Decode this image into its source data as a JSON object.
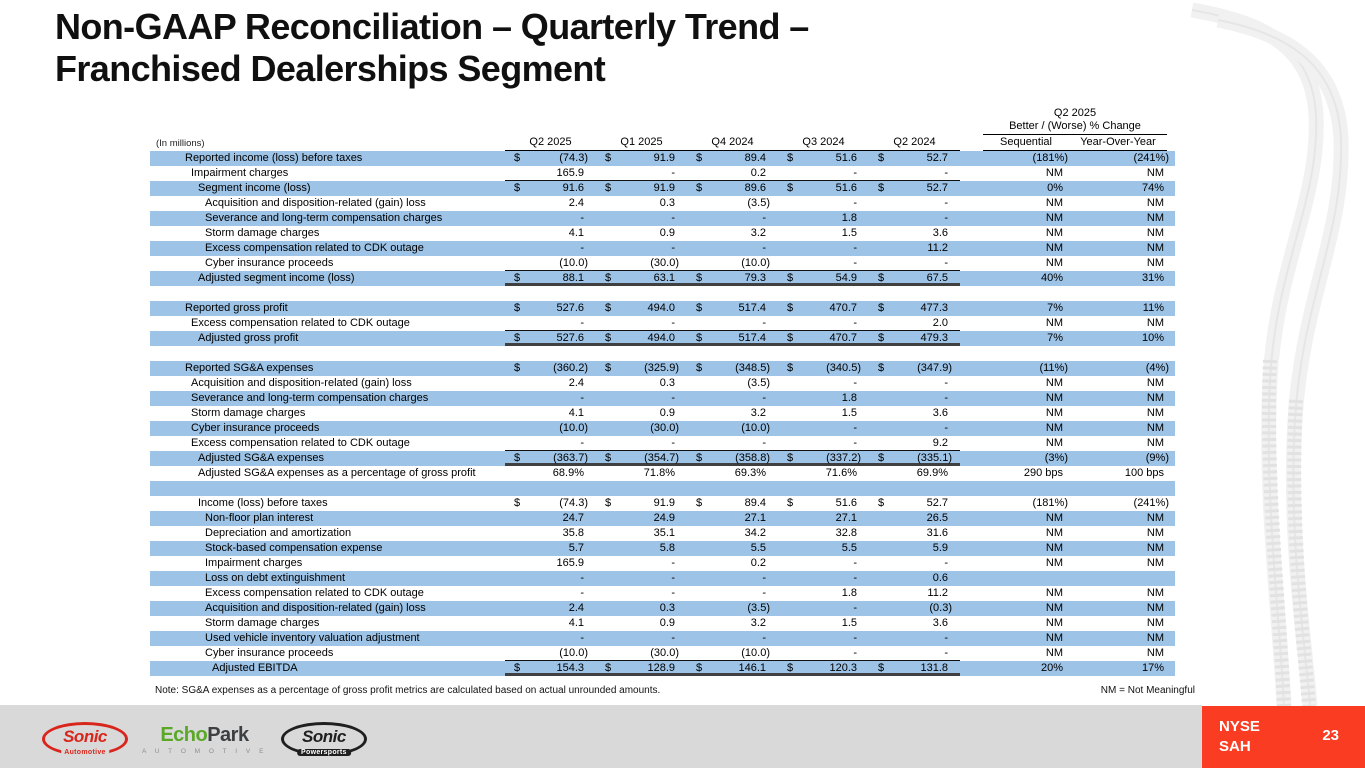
{
  "slide": {
    "title_line1": "Non-GAAP Reconciliation – Quarterly Trend –",
    "title_line2": "Franchised Dealerships Segment",
    "note": "Note: SG&A expenses as a percentage of gross profit metrics are calculated based on actual unrounded amounts.",
    "nm_legend": "NM = Not Meaningful",
    "ticker_line1": "NYSE",
    "ticker_line2": "SAH",
    "page_number": "23"
  },
  "colors": {
    "row_blue": "#9DC3E6",
    "accent_red": "#FA3C23",
    "footer_gray": "#D9D9D9",
    "logo_red": "#D9261C",
    "logo_green": "#5BA829",
    "logo_dark": "#1F1F1F",
    "rule_dark": "#404040"
  },
  "logos": {
    "sonic_automotive": {
      "word": "Sonic",
      "sub": "Automotive"
    },
    "echopark": {
      "word_green": "Echo",
      "word_dark": "Park",
      "sub": "A U T O M O T I V E"
    },
    "sonic_powersports": {
      "word": "Sonic",
      "sub": "Powersports"
    }
  },
  "table": {
    "units_label": "(In millions)",
    "dollar_sign": "$",
    "col_headers": [
      "Q2 2025",
      "Q1 2025",
      "Q4 2024",
      "Q3 2024",
      "Q2 2024"
    ],
    "change_header_line1": "Q2 2025",
    "change_header_line2": "Better / (Worse) % Change",
    "change_col_seq": "Sequential",
    "change_col_yoy": "Year-Over-Year",
    "rows": [
      {
        "label": "Reported income (loss) before taxes",
        "indent": 1,
        "dollar": true,
        "values": [
          "(74.3)",
          "91.9",
          "89.4",
          "51.6",
          "52.7"
        ],
        "seq": "(181%)",
        "yoy": "(241%)",
        "shade": "blue"
      },
      {
        "label": "Impairment charges",
        "indent": 2,
        "values": [
          "165.9",
          "-",
          "0.2",
          "-",
          "-"
        ],
        "seq": "NM",
        "yoy": "NM",
        "shade": "white",
        "rule": "thin"
      },
      {
        "label": "Segment income (loss)",
        "indent": 3,
        "dollar": true,
        "values": [
          "91.6",
          "91.9",
          "89.6",
          "51.6",
          "52.7"
        ],
        "seq": "0%",
        "yoy": "74%",
        "shade": "blue"
      },
      {
        "label": "Acquisition and disposition-related (gain) loss",
        "indent": 4,
        "values": [
          "2.4",
          "0.3",
          "(3.5)",
          "-",
          "-"
        ],
        "seq": "NM",
        "yoy": "NM",
        "shade": "white"
      },
      {
        "label": "Severance and long-term compensation charges",
        "indent": 4,
        "values": [
          "-",
          "-",
          "-",
          "1.8",
          "-"
        ],
        "seq": "NM",
        "yoy": "NM",
        "shade": "blue"
      },
      {
        "label": "Storm damage charges",
        "indent": 4,
        "values": [
          "4.1",
          "0.9",
          "3.2",
          "1.5",
          "3.6"
        ],
        "seq": "NM",
        "yoy": "NM",
        "shade": "white"
      },
      {
        "label": "Excess compensation related to CDK outage",
        "indent": 4,
        "values": [
          "-",
          "-",
          "-",
          "-",
          "11.2"
        ],
        "seq": "NM",
        "yoy": "NM",
        "shade": "blue"
      },
      {
        "label": "Cyber insurance proceeds",
        "indent": 4,
        "values": [
          "(10.0)",
          "(30.0)",
          "(10.0)",
          "-",
          "-"
        ],
        "seq": "NM",
        "yoy": "NM",
        "shade": "white",
        "rule": "thin"
      },
      {
        "label": "Adjusted segment income (loss)",
        "indent": 3,
        "dollar": true,
        "values": [
          "88.1",
          "63.1",
          "79.3",
          "54.9",
          "67.5"
        ],
        "seq": "40%",
        "yoy": "31%",
        "shade": "blue",
        "rule": "thick"
      },
      {
        "blank": true,
        "shade": "white",
        "values": []
      },
      {
        "label": "Reported gross profit",
        "indent": 1,
        "dollar": true,
        "values": [
          "527.6",
          "494.0",
          "517.4",
          "470.7",
          "477.3"
        ],
        "seq": "7%",
        "yoy": "11%",
        "shade": "blue"
      },
      {
        "label": "Excess compensation related to CDK outage",
        "indent": 2,
        "values": [
          "-",
          "-",
          "-",
          "-",
          "2.0"
        ],
        "seq": "NM",
        "yoy": "NM",
        "shade": "white",
        "rule": "thin"
      },
      {
        "label": "Adjusted gross profit",
        "indent": 3,
        "dollar": true,
        "values": [
          "527.6",
          "494.0",
          "517.4",
          "470.7",
          "479.3"
        ],
        "seq": "7%",
        "yoy": "10%",
        "shade": "blue",
        "rule": "thick"
      },
      {
        "blank": true,
        "shade": "white",
        "values": []
      },
      {
        "label": "Reported SG&A expenses",
        "indent": 1,
        "dollar": true,
        "values": [
          "(360.2)",
          "(325.9)",
          "(348.5)",
          "(340.5)",
          "(347.9)"
        ],
        "seq": "(11%)",
        "yoy": "(4%)",
        "shade": "blue"
      },
      {
        "label": "Acquisition and disposition-related (gain) loss",
        "indent": 2,
        "values": [
          "2.4",
          "0.3",
          "(3.5)",
          "-",
          "-"
        ],
        "seq": "NM",
        "yoy": "NM",
        "shade": "white"
      },
      {
        "label": "Severance and long-term compensation charges",
        "indent": 2,
        "values": [
          "-",
          "-",
          "-",
          "1.8",
          "-"
        ],
        "seq": "NM",
        "yoy": "NM",
        "shade": "blue"
      },
      {
        "label": "Storm damage charges",
        "indent": 2,
        "values": [
          "4.1",
          "0.9",
          "3.2",
          "1.5",
          "3.6"
        ],
        "seq": "NM",
        "yoy": "NM",
        "shade": "white"
      },
      {
        "label": "Cyber insurance proceeds",
        "indent": 2,
        "values": [
          "(10.0)",
          "(30.0)",
          "(10.0)",
          "-",
          "-"
        ],
        "seq": "NM",
        "yoy": "NM",
        "shade": "blue"
      },
      {
        "label": "Excess compensation related to CDK outage",
        "indent": 2,
        "values": [
          "-",
          "-",
          "-",
          "-",
          "9.2"
        ],
        "seq": "NM",
        "yoy": "NM",
        "shade": "white",
        "rule": "thin"
      },
      {
        "label": "Adjusted SG&A expenses",
        "indent": 3,
        "dollar": true,
        "values": [
          "(363.7)",
          "(354.7)",
          "(358.8)",
          "(337.2)",
          "(335.1)"
        ],
        "seq": "(3%)",
        "yoy": "(9%)",
        "shade": "blue",
        "rule": "thick"
      },
      {
        "label": "Adjusted SG&A expenses as a percentage of gross profit",
        "indent": 3,
        "values": [
          "68.9%",
          "71.8%",
          "69.3%",
          "71.6%",
          "69.9%"
        ],
        "seq": "290 bps",
        "yoy": "100 bps",
        "shade": "white"
      },
      {
        "blank": true,
        "shade": "blue",
        "values": []
      },
      {
        "label": "Income (loss) before taxes",
        "indent": 3,
        "dollar": true,
        "values": [
          "(74.3)",
          "91.9",
          "89.4",
          "51.6",
          "52.7"
        ],
        "seq": "(181%)",
        "yoy": "(241%)",
        "shade": "white"
      },
      {
        "label": "Non-floor plan interest",
        "indent": 4,
        "values": [
          "24.7",
          "24.9",
          "27.1",
          "27.1",
          "26.5"
        ],
        "seq": "NM",
        "yoy": "NM",
        "shade": "blue"
      },
      {
        "label": "Depreciation and amortization",
        "indent": 4,
        "values": [
          "35.8",
          "35.1",
          "34.2",
          "32.8",
          "31.6"
        ],
        "seq": "NM",
        "yoy": "NM",
        "shade": "white"
      },
      {
        "label": "Stock-based compensation expense",
        "indent": 4,
        "values": [
          "5.7",
          "5.8",
          "5.5",
          "5.5",
          "5.9"
        ],
        "seq": "NM",
        "yoy": "NM",
        "shade": "blue"
      },
      {
        "label": "Impairment charges",
        "indent": 4,
        "values": [
          "165.9",
          "-",
          "0.2",
          "-",
          "-"
        ],
        "seq": "NM",
        "yoy": "NM",
        "shade": "white"
      },
      {
        "label": "Loss on debt extinguishment",
        "indent": 4,
        "values": [
          "-",
          "-",
          "-",
          "-",
          "0.6"
        ],
        "seq": "",
        "yoy": "",
        "shade": "blue"
      },
      {
        "label": "Excess compensation related to CDK outage",
        "indent": 4,
        "values": [
          "-",
          "-",
          "-",
          "1.8",
          "11.2"
        ],
        "seq": "NM",
        "yoy": "NM",
        "shade": "white"
      },
      {
        "label": "Acquisition and disposition-related (gain) loss",
        "indent": 4,
        "values": [
          "2.4",
          "0.3",
          "(3.5)",
          "-",
          "(0.3)"
        ],
        "seq": "NM",
        "yoy": "NM",
        "shade": "blue"
      },
      {
        "label": "Storm damage charges",
        "indent": 4,
        "values": [
          "4.1",
          "0.9",
          "3.2",
          "1.5",
          "3.6"
        ],
        "seq": "NM",
        "yoy": "NM",
        "shade": "white"
      },
      {
        "label": "Used vehicle inventory valuation adjustment",
        "indent": 4,
        "values": [
          "-",
          "-",
          "-",
          "-",
          "-"
        ],
        "seq": "NM",
        "yoy": "NM",
        "shade": "blue"
      },
      {
        "label": "Cyber insurance proceeds",
        "indent": 4,
        "values": [
          "(10.0)",
          "(30.0)",
          "(10.0)",
          "-",
          "-"
        ],
        "seq": "NM",
        "yoy": "NM",
        "shade": "white",
        "rule": "thin"
      },
      {
        "label": "Adjusted EBITDA",
        "indent": 5,
        "dollar": true,
        "values": [
          "154.3",
          "128.9",
          "146.1",
          "120.3",
          "131.8"
        ],
        "seq": "20%",
        "yoy": "17%",
        "shade": "blue",
        "rule": "thick"
      }
    ]
  }
}
